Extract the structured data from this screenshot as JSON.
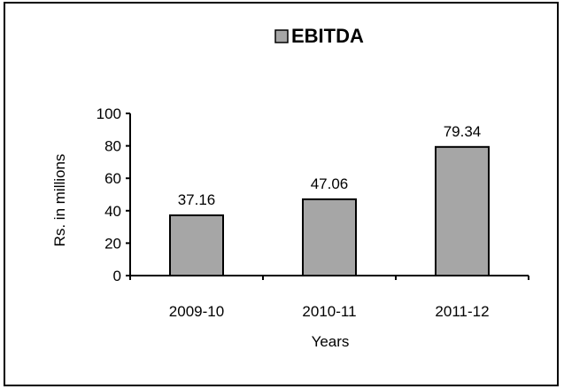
{
  "chart_data": {
    "type": "bar",
    "categories": [
      "2009-10",
      "2010-11",
      "2011-12"
    ],
    "series": [
      {
        "name": "EBITDA",
        "values": [
          37.16,
          47.06,
          79.34
        ]
      }
    ],
    "data_labels": [
      "37.16",
      "47.06",
      "79.34"
    ],
    "yticks": [
      0,
      20,
      40,
      60,
      80,
      100
    ],
    "ylim": [
      0,
      100
    ],
    "xlabel": "Years",
    "ylabel": "Rs. in millions",
    "legend": {
      "label": "EBITDA",
      "placement": "top"
    },
    "grid": false,
    "bar_color": "#a6a6a6",
    "bar_edge_color": "#000000"
  }
}
